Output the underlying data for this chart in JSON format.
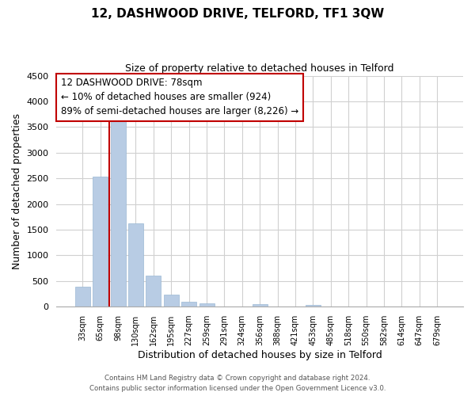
{
  "title": "12, DASHWOOD DRIVE, TELFORD, TF1 3QW",
  "subtitle": "Size of property relative to detached houses in Telford",
  "xlabel": "Distribution of detached houses by size in Telford",
  "ylabel": "Number of detached properties",
  "categories": [
    "33sqm",
    "65sqm",
    "98sqm",
    "130sqm",
    "162sqm",
    "195sqm",
    "227sqm",
    "259sqm",
    "291sqm",
    "324sqm",
    "356sqm",
    "388sqm",
    "421sqm",
    "453sqm",
    "485sqm",
    "518sqm",
    "550sqm",
    "582sqm",
    "614sqm",
    "647sqm",
    "679sqm"
  ],
  "values": [
    390,
    2530,
    3700,
    1630,
    600,
    240,
    100,
    60,
    0,
    0,
    50,
    0,
    0,
    40,
    0,
    0,
    0,
    0,
    0,
    0,
    0
  ],
  "bar_color": "#b8cce4",
  "bar_edge_color": "#9bb8d4",
  "vline_position": 1.5,
  "vline_color": "#c00000",
  "ylim": [
    0,
    4500
  ],
  "yticks": [
    0,
    500,
    1000,
    1500,
    2000,
    2500,
    3000,
    3500,
    4000,
    4500
  ],
  "annotation_text": "12 DASHWOOD DRIVE: 78sqm\n← 10% of detached houses are smaller (924)\n89% of semi-detached houses are larger (8,226) →",
  "footer1": "Contains HM Land Registry data © Crown copyright and database right 2024.",
  "footer2": "Contains public sector information licensed under the Open Government Licence v3.0.",
  "background_color": "#ffffff",
  "grid_color": "#d0d0d0"
}
